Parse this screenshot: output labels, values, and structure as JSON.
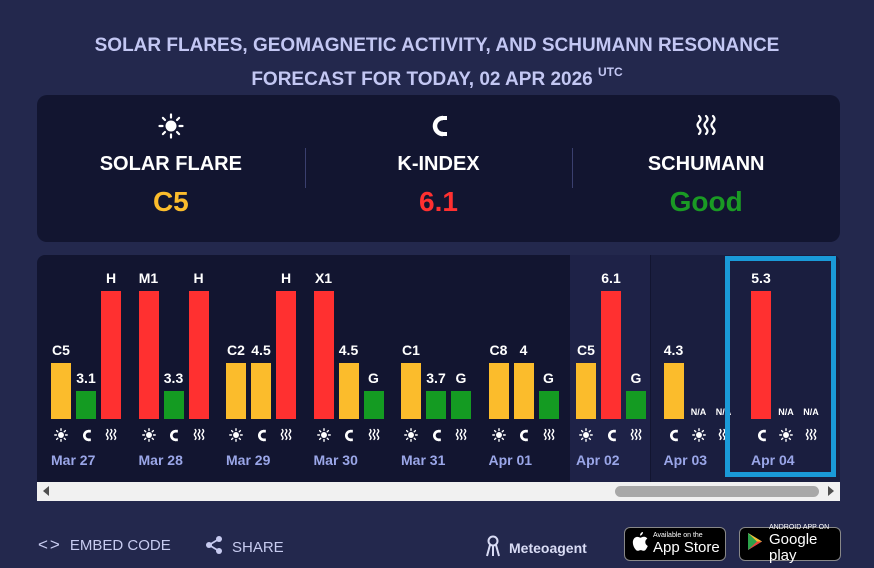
{
  "header": {
    "title_line1": "SOLAR FLARES, GEOMAGNETIC ACTIVITY, AND SCHUMANN RESONANCE",
    "title_line2": "FORECAST FOR TODAY, 02 APR 2026",
    "title_sup": "UTC"
  },
  "summary": {
    "solar": {
      "icon": "sun-icon",
      "label": "SOLAR FLARE",
      "value": "C5",
      "color": "#fbbc2c"
    },
    "kindex": {
      "icon": "magnet-icon",
      "label": "K-INDEX",
      "value": "6.1",
      "color": "#ff3030"
    },
    "schumann": {
      "icon": "waves-icon",
      "label": "SCHUMANN",
      "value": "Good",
      "color": "#1a9a24"
    }
  },
  "colors": {
    "yellow": "#fbbc2c",
    "red": "#ff3030",
    "green": "#149b22",
    "date": "#9aa6e8",
    "selection": "#1a9ad8"
  },
  "days": [
    {
      "date": "Mar 27",
      "icons": [
        "sun-icon",
        "magnet-icon",
        "waves-icon"
      ],
      "bars": [
        {
          "label": "C5",
          "level": 0.44,
          "color": "yellow"
        },
        {
          "label": "3.1",
          "level": 0.22,
          "color": "green"
        },
        {
          "label": "H",
          "level": 1.0,
          "color": "red"
        }
      ]
    },
    {
      "date": "Mar 28",
      "icons": [
        "sun-icon",
        "magnet-icon",
        "waves-icon"
      ],
      "bars": [
        {
          "label": "M1",
          "level": 1.0,
          "color": "red"
        },
        {
          "label": "3.3",
          "level": 0.22,
          "color": "green"
        },
        {
          "label": "H",
          "level": 1.0,
          "color": "red"
        }
      ]
    },
    {
      "date": "Mar 29",
      "icons": [
        "sun-icon",
        "magnet-icon",
        "waves-icon"
      ],
      "bars": [
        {
          "label": "C2",
          "level": 0.44,
          "color": "yellow"
        },
        {
          "label": "4.5",
          "level": 0.44,
          "color": "yellow"
        },
        {
          "label": "H",
          "level": 1.0,
          "color": "red"
        }
      ]
    },
    {
      "date": "Mar 30",
      "icons": [
        "sun-icon",
        "magnet-icon",
        "waves-icon"
      ],
      "bars": [
        {
          "label": "X1",
          "level": 1.0,
          "color": "red"
        },
        {
          "label": "4.5",
          "level": 0.44,
          "color": "yellow"
        },
        {
          "label": "G",
          "level": 0.22,
          "color": "green"
        }
      ]
    },
    {
      "date": "Mar 31",
      "icons": [
        "sun-icon",
        "magnet-icon",
        "waves-icon"
      ],
      "bars": [
        {
          "label": "C1",
          "level": 0.44,
          "color": "yellow"
        },
        {
          "label": "3.7",
          "level": 0.22,
          "color": "green"
        },
        {
          "label": "G",
          "level": 0.22,
          "color": "green"
        }
      ]
    },
    {
      "date": "Apr 01",
      "icons": [
        "sun-icon",
        "magnet-icon",
        "waves-icon"
      ],
      "bars": [
        {
          "label": "C8",
          "level": 0.44,
          "color": "yellow"
        },
        {
          "label": "4",
          "level": 0.44,
          "color": "yellow"
        },
        {
          "label": "G",
          "level": 0.22,
          "color": "green"
        }
      ]
    },
    {
      "date": "Apr 02",
      "icons": [
        "sun-icon",
        "magnet-icon",
        "waves-icon"
      ],
      "bars": [
        {
          "label": "C5",
          "level": 0.44,
          "color": "yellow"
        },
        {
          "label": "6.1",
          "level": 1.0,
          "color": "red"
        },
        {
          "label": "G",
          "level": 0.22,
          "color": "green"
        }
      ]
    },
    {
      "date": "Apr 03",
      "icons": [
        "magnet-icon",
        "sun-icon",
        "waves-icon"
      ],
      "bars": [
        {
          "label": "4.3",
          "level": 0.44,
          "color": "yellow"
        },
        {
          "label": "N/A",
          "level": 0,
          "color": "none"
        },
        {
          "label": "N/A",
          "level": 0,
          "color": "none"
        }
      ]
    },
    {
      "date": "Apr 04",
      "icons": [
        "magnet-icon",
        "sun-icon",
        "waves-icon"
      ],
      "bars": [
        {
          "label": "5.3",
          "level": 1.0,
          "color": "red"
        },
        {
          "label": "N/A",
          "level": 0,
          "color": "none"
        },
        {
          "label": "N/A",
          "level": 0,
          "color": "none"
        }
      ]
    }
  ],
  "footer": {
    "embed_label": "EMBED CODE",
    "share_label": "SHARE",
    "meteo_label": "Meteoagent",
    "appstore_small": "Available on the",
    "appstore_big": "App Store",
    "googleplay_small": "ANDROID APP ON",
    "googleplay_big": "Google play"
  }
}
